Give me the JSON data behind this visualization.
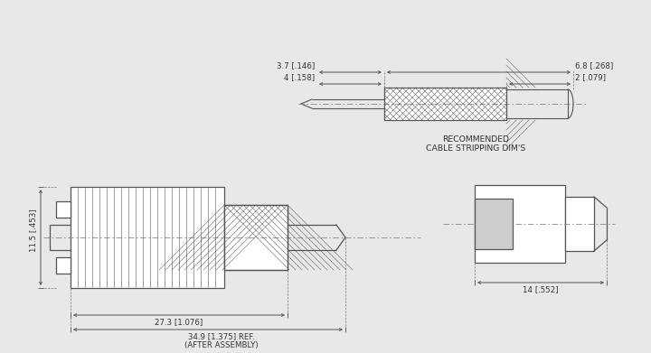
{
  "bg_color": "#e8e8e8",
  "line_color": "#555555",
  "text_color": "#333333",
  "font_size": 6.2,
  "dim_37": "3.7 [.146]",
  "dim_4": "4 [.158]",
  "dim_68": "6.8 [.268]",
  "dim_2": "2 [.079]",
  "dim_115": "11.5 [.453]",
  "dim_273": "27.3 [1.076]",
  "dim_349": "34.9 [1.375] REF.",
  "dim_349b": "(AFTER ASSEMBLY)",
  "dim_14": "14 [.552]",
  "label_rec": "RECOMMENDED",
  "label_csd": "CABLE STRIPPING DIM'S"
}
